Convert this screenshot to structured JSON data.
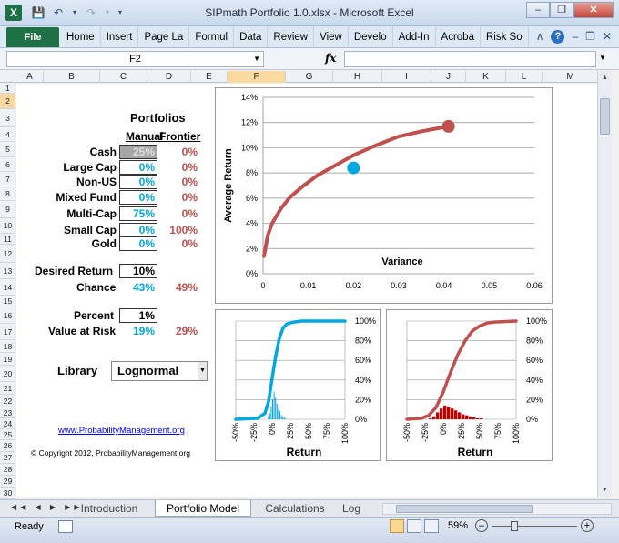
{
  "window": {
    "title": "SIPmath Portfolio 1.0.xlsx  -  Microsoft Excel",
    "app_icon": "X",
    "controls": [
      "minimize",
      "restore",
      "close"
    ]
  },
  "ribbon": {
    "file_tab": "File",
    "tabs": [
      "Home",
      "Insert",
      "Page La",
      "Formul",
      "Data",
      "Review",
      "View",
      "Develo",
      "Add-In",
      "Acroba",
      "Risk So"
    ]
  },
  "formula_bar": {
    "name_box": "F2",
    "fx_label": "fx",
    "formula": ""
  },
  "columns": [
    "A",
    "B",
    "C",
    "D",
    "E",
    "F",
    "G",
    "H",
    "I",
    "J",
    "K",
    "L",
    "M"
  ],
  "selected_column": "F",
  "rows": [
    "1",
    "2",
    "3",
    "4",
    "5",
    "6",
    "7",
    "8",
    "9",
    "10",
    "11",
    "12",
    "13",
    "14",
    "15",
    "16",
    "17",
    "18",
    "19",
    "20",
    "21",
    "22",
    "23",
    "24",
    "25",
    "26",
    "27",
    "28",
    "29",
    "30",
    "31"
  ],
  "selected_row": "2",
  "sheet": {
    "title": "Portfolios",
    "col_manual": "Manual",
    "col_frontier": "Frontier",
    "assets": [
      {
        "name": "Cash",
        "manual": "25%",
        "frontier": "0%"
      },
      {
        "name": "Large Cap",
        "manual": "0%",
        "frontier": "0%"
      },
      {
        "name": "Non-US",
        "manual": "0%",
        "frontier": "0%"
      },
      {
        "name": "Mixed Fund",
        "manual": "0%",
        "frontier": "0%"
      },
      {
        "name": "Multi-Cap",
        "manual": "75%",
        "frontier": "0%"
      },
      {
        "name": "Small Cap",
        "manual": "0%",
        "frontier": "100%"
      },
      {
        "name": "Gold",
        "manual": "0%",
        "frontier": "0%"
      }
    ],
    "desired_return_label": "Desired Return",
    "desired_return": "10%",
    "chance_label": "Chance",
    "chance_manual": "43%",
    "chance_frontier": "49%",
    "percent_label": "Percent",
    "percent": "1%",
    "var_label": "Value at Risk",
    "var_manual": "19%",
    "var_frontier": "29%",
    "library_label": "Library",
    "library_value": "Lognormal",
    "link": "www.ProbabilityManagement.org",
    "copyright": "© Copyright 2012, ProbabilityManagement.org"
  },
  "chart_data": [
    {
      "type": "line",
      "title": "",
      "xlabel": "Variance",
      "ylabel": "Average Return",
      "xlim": [
        0,
        0.06
      ],
      "ylim": [
        0,
        0.14
      ],
      "x_ticks": [
        "0",
        "0.01",
        "0.02",
        "0.03",
        "0.04",
        "0.05",
        "0.06"
      ],
      "y_ticks": [
        "0%",
        "2%",
        "4%",
        "6%",
        "8%",
        "10%",
        "12%",
        "14%"
      ],
      "series": [
        {
          "color": "#c0504d",
          "x": [
            0.0002,
            0.001,
            0.002,
            0.004,
            0.006,
            0.009,
            0.012,
            0.016,
            0.02,
            0.025,
            0.03,
            0.035,
            0.041
          ],
          "y": [
            0.014,
            0.03,
            0.04,
            0.052,
            0.061,
            0.07,
            0.078,
            0.086,
            0.094,
            0.102,
            0.109,
            0.113,
            0.117
          ]
        },
        {
          "color": "#c0504d",
          "x": [
            0.041
          ],
          "y": [
            0.117
          ],
          "marker": "point"
        },
        {
          "color": "#00a7e1",
          "x": [
            0.02
          ],
          "y": [
            0.084
          ],
          "marker": "point"
        }
      ]
    },
    {
      "type": "bar",
      "xlabel": "Return",
      "ylabel": "",
      "color": "#00a7e1",
      "x_ticks": [
        "-50%",
        "-25%",
        "0%",
        "25%",
        "50%",
        "75%",
        "100%"
      ],
      "y2_ticks": [
        "0%",
        "20%",
        "40%",
        "60%",
        "80%",
        "100%"
      ],
      "xlim": [
        -0.5,
        1.0
      ],
      "histogram": {
        "bins": [
          -0.06,
          -0.04,
          -0.02,
          0.0,
          0.02,
          0.04,
          0.06,
          0.08,
          0.1,
          0.12,
          0.14,
          0.16,
          0.18
        ],
        "heights": [
          0.03,
          0.06,
          0.13,
          0.2,
          0.28,
          0.22,
          0.16,
          0.1,
          0.08,
          0.04,
          0.03,
          0.02,
          0.01
        ]
      },
      "cdf": {
        "x": [
          -0.5,
          -0.2,
          -0.1,
          -0.05,
          0.0,
          0.05,
          0.1,
          0.15,
          0.2,
          0.3,
          0.4,
          0.6,
          1.0
        ],
        "y": [
          0.0,
          0.01,
          0.06,
          0.18,
          0.42,
          0.65,
          0.83,
          0.93,
          0.97,
          0.99,
          1.0,
          1.0,
          1.0
        ]
      }
    },
    {
      "type": "bar",
      "xlabel": "Return",
      "ylabel": "",
      "color": "#c00000",
      "x_ticks": [
        "-50%",
        "-25%",
        "0%",
        "25%",
        "50%",
        "75%",
        "100%"
      ],
      "y2_ticks": [
        "0%",
        "20%",
        "40%",
        "60%",
        "80%",
        "100%"
      ],
      "xlim": [
        -0.5,
        1.0
      ],
      "histogram": {
        "bins": [
          -0.2,
          -0.15,
          -0.1,
          -0.05,
          0.0,
          0.05,
          0.1,
          0.15,
          0.2,
          0.25,
          0.3,
          0.35,
          0.4,
          0.45,
          0.5
        ],
        "heights": [
          0.01,
          0.03,
          0.07,
          0.11,
          0.14,
          0.13,
          0.11,
          0.09,
          0.07,
          0.05,
          0.04,
          0.03,
          0.02,
          0.01,
          0.01
        ]
      },
      "cdf": {
        "x": [
          -0.5,
          -0.3,
          -0.2,
          -0.1,
          0.0,
          0.1,
          0.2,
          0.3,
          0.4,
          0.5,
          0.6,
          0.7,
          1.0
        ],
        "y": [
          0.0,
          0.01,
          0.04,
          0.12,
          0.28,
          0.48,
          0.66,
          0.8,
          0.9,
          0.95,
          0.98,
          0.99,
          1.0
        ]
      }
    }
  ],
  "sheet_tabs": [
    "Introduction",
    "Portfolio Model",
    "Calculations",
    "Log"
  ],
  "active_tab": "Portfolio Model",
  "status": {
    "ready": "Ready",
    "zoom": "59%"
  },
  "colors": {
    "excel_green": "#1e7145",
    "manual_blue": "#00a7e1",
    "frontier_red": "#c0504d",
    "hist_red": "#c00000",
    "selection": "#f9d99f"
  }
}
